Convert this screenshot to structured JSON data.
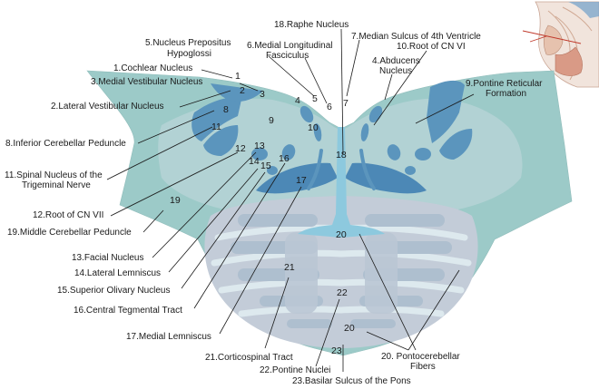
{
  "colors": {
    "outer": "#9ccac8",
    "inner_light": "#b6d4d6",
    "nucleus_blue": "#5b95bd",
    "dark_blue": "#4c88b6",
    "lemniscus_blue": "#8dc9de",
    "fiber_white": "#d9e7ee",
    "pons_gray": "#c3ccd8",
    "tract_gray": "#aebfcf",
    "leader": "#1a1a1a"
  },
  "labels": [
    {
      "key": "raphe",
      "lines": [
        "18.Raphe Nucleus"
      ]
    },
    {
      "key": "median_sulcus",
      "lines": [
        "7.Median Sulcus of 4th  Ventricle"
      ]
    },
    {
      "key": "root_vi",
      "lines": [
        "10.Root of CN VI"
      ]
    },
    {
      "key": "prepositus",
      "lines": [
        "5.Nucleus Prepositus",
        "Hypoglossi"
      ]
    },
    {
      "key": "mlf",
      "lines": [
        "6.Medial Longitudinal",
        "Fasciculus"
      ]
    },
    {
      "key": "abducens",
      "lines": [
        "4.Abducens",
        "Nucleus"
      ]
    },
    {
      "key": "cochlear",
      "lines": [
        "1.Cochlear Nucleus"
      ]
    },
    {
      "key": "medial_vestibular",
      "lines": [
        "3.Medial Vestibular Nucleus"
      ]
    },
    {
      "key": "pontine_reticular",
      "lines": [
        "9.Pontine Reticular",
        "Formation"
      ]
    },
    {
      "key": "lateral_vestibular",
      "lines": [
        "2.Lateral Vestibular Nucleus"
      ]
    },
    {
      "key": "icp",
      "lines": [
        "8.Inferior Cerebellar Peduncle"
      ]
    },
    {
      "key": "spinal_v",
      "lines": [
        "11.Spinal Nucleus of the",
        "Trigeminal Nerve"
      ]
    },
    {
      "key": "root_vii",
      "lines": [
        "12.Root of CN VII"
      ]
    },
    {
      "key": "mcp",
      "lines": [
        "19.Middle Cerebellar Peduncle"
      ]
    },
    {
      "key": "facial",
      "lines": [
        "13.Facial Nucleus"
      ]
    },
    {
      "key": "lateral_lemniscus",
      "lines": [
        "14.Lateral Lemniscus"
      ]
    },
    {
      "key": "superior_olivary",
      "lines": [
        "15.Superior Olivary Nucleus"
      ]
    },
    {
      "key": "central_tegmental",
      "lines": [
        "16.Central Tegmental Tract"
      ]
    },
    {
      "key": "medial_lemniscus",
      "lines": [
        "17.Medial Lemniscus"
      ]
    },
    {
      "key": "corticospinal",
      "lines": [
        "21.Corticospinal Tract"
      ]
    },
    {
      "key": "pontine_nuclei",
      "lines": [
        "22.Pontine Nuclei"
      ]
    },
    {
      "key": "basilar_sulcus",
      "lines": [
        "23.Basilar Sulcus of the Pons"
      ]
    },
    {
      "key": "pontocerebellar",
      "lines": [
        "20. Pontocerebellar",
        "Fibers"
      ]
    }
  ],
  "numbers": [
    {
      "key": "n1",
      "text": "1"
    },
    {
      "key": "n2",
      "text": "2"
    },
    {
      "key": "n3",
      "text": "3"
    },
    {
      "key": "n4",
      "text": "4"
    },
    {
      "key": "n5",
      "text": "5"
    },
    {
      "key": "n6",
      "text": "6"
    },
    {
      "key": "n7",
      "text": "7"
    },
    {
      "key": "n8",
      "text": "8"
    },
    {
      "key": "n9",
      "text": "9"
    },
    {
      "key": "n10",
      "text": "10"
    },
    {
      "key": "n11",
      "text": "11"
    },
    {
      "key": "n12",
      "text": "12"
    },
    {
      "key": "n13",
      "text": "13"
    },
    {
      "key": "n14",
      "text": "14"
    },
    {
      "key": "n15",
      "text": "15"
    },
    {
      "key": "n16",
      "text": "16"
    },
    {
      "key": "n17",
      "text": "17"
    },
    {
      "key": "n18",
      "text": "18"
    },
    {
      "key": "n19",
      "text": "19"
    },
    {
      "key": "n20a",
      "text": "20"
    },
    {
      "key": "n20b",
      "text": "20"
    },
    {
      "key": "n21",
      "text": "21"
    },
    {
      "key": "n22",
      "text": "22"
    },
    {
      "key": "n23",
      "text": "23"
    }
  ]
}
